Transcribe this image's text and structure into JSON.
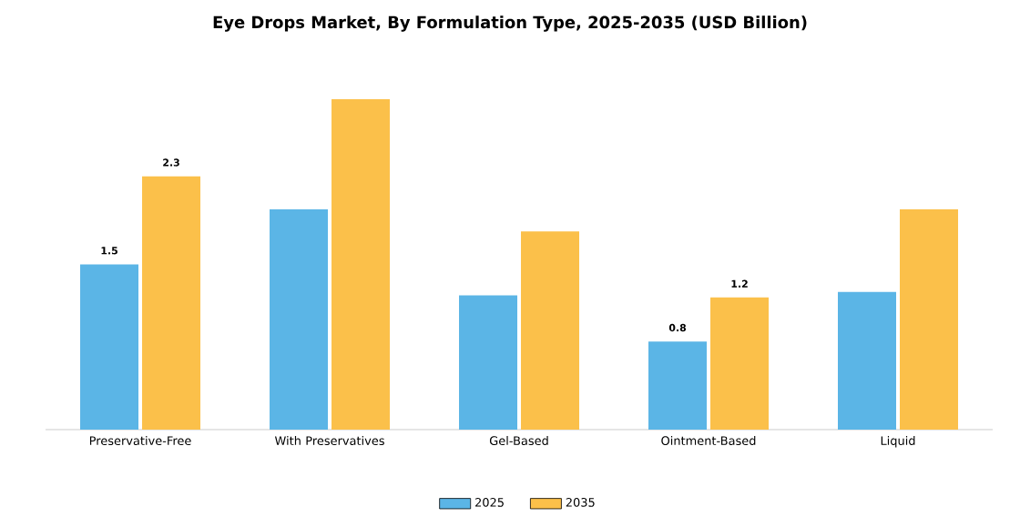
{
  "chart_data": {
    "type": "bar",
    "title": "Eye Drops Market, By Formulation Type, 2025-2035 (USD Billion)",
    "categories": [
      "Preservative-Free",
      "With Preservatives",
      "Gel-Based",
      "Ointment-Based",
      "Liquid"
    ],
    "series": [
      {
        "name": "2025",
        "color": "#5bb5e6",
        "values": [
          1.5,
          2.0,
          1.22,
          0.8,
          1.25
        ],
        "value_labels": [
          "1.5",
          null,
          null,
          "0.8",
          null
        ]
      },
      {
        "name": "2035",
        "color": "#fbc04a",
        "values": [
          2.3,
          3.0,
          1.8,
          1.2,
          2.0
        ],
        "value_labels": [
          "2.3",
          null,
          null,
          "1.2",
          null
        ]
      }
    ],
    "tick_labels": "x",
    "legend": "bottom",
    "grid": false
  }
}
